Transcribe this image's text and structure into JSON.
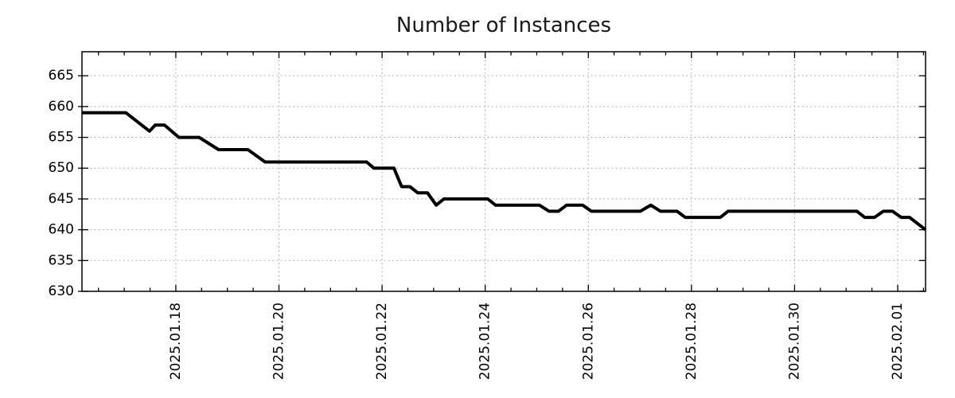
{
  "page": {
    "background_color": "#ffffff"
  },
  "chart_data": {
    "type": "line",
    "title": "Number of Instances",
    "xlabel": "",
    "ylabel": "",
    "legend": "none",
    "grid": {
      "style": "dotted",
      "color": "#a9a9a9",
      "on": true
    },
    "x_axis": {
      "tick_labels": [
        "2025.01.18",
        "2025.01.20",
        "2025.01.22",
        "2025.01.24",
        "2025.01.26",
        "2025.01.28",
        "2025.01.30",
        "2025.02.01"
      ],
      "tick_positions_days": [
        2,
        4,
        6,
        8,
        10,
        12,
        14,
        16
      ],
      "minor_tick_interval_days": 0.5,
      "range_days": [
        0.18,
        16.54
      ],
      "label_rotation_deg": -90
    },
    "y_axis": {
      "tick_labels": [
        "630",
        "635",
        "640",
        "645",
        "650",
        "655",
        "660",
        "665"
      ],
      "tick_values": [
        630,
        635,
        640,
        645,
        650,
        655,
        660,
        665
      ],
      "range": [
        630,
        668.9
      ]
    },
    "series": [
      {
        "name": "instances",
        "color": "#000000",
        "line_width": 4,
        "points": [
          [
            0.18,
            659
          ],
          [
            1.03,
            659
          ],
          [
            1.49,
            656
          ],
          [
            1.6,
            657
          ],
          [
            1.78,
            657
          ],
          [
            2.06,
            655
          ],
          [
            2.45,
            655
          ],
          [
            2.83,
            653
          ],
          [
            3.4,
            653
          ],
          [
            3.73,
            651
          ],
          [
            5.7,
            651
          ],
          [
            5.84,
            650
          ],
          [
            6.23,
            650
          ],
          [
            6.38,
            647
          ],
          [
            6.54,
            647
          ],
          [
            6.69,
            646
          ],
          [
            6.88,
            646
          ],
          [
            7.05,
            644
          ],
          [
            7.2,
            645
          ],
          [
            8.05,
            645
          ],
          [
            8.2,
            644
          ],
          [
            9.05,
            644
          ],
          [
            9.24,
            643
          ],
          [
            9.42,
            643
          ],
          [
            9.58,
            644
          ],
          [
            9.89,
            644
          ],
          [
            10.06,
            643
          ],
          [
            11.01,
            643
          ],
          [
            11.21,
            644
          ],
          [
            11.4,
            643
          ],
          [
            11.72,
            643
          ],
          [
            11.88,
            642
          ],
          [
            12.56,
            642
          ],
          [
            12.71,
            643
          ],
          [
            15.21,
            643
          ],
          [
            15.36,
            642
          ],
          [
            15.55,
            642
          ],
          [
            15.72,
            643
          ],
          [
            15.9,
            643
          ],
          [
            16.07,
            642
          ],
          [
            16.23,
            642
          ],
          [
            16.54,
            640
          ]
        ]
      }
    ]
  }
}
